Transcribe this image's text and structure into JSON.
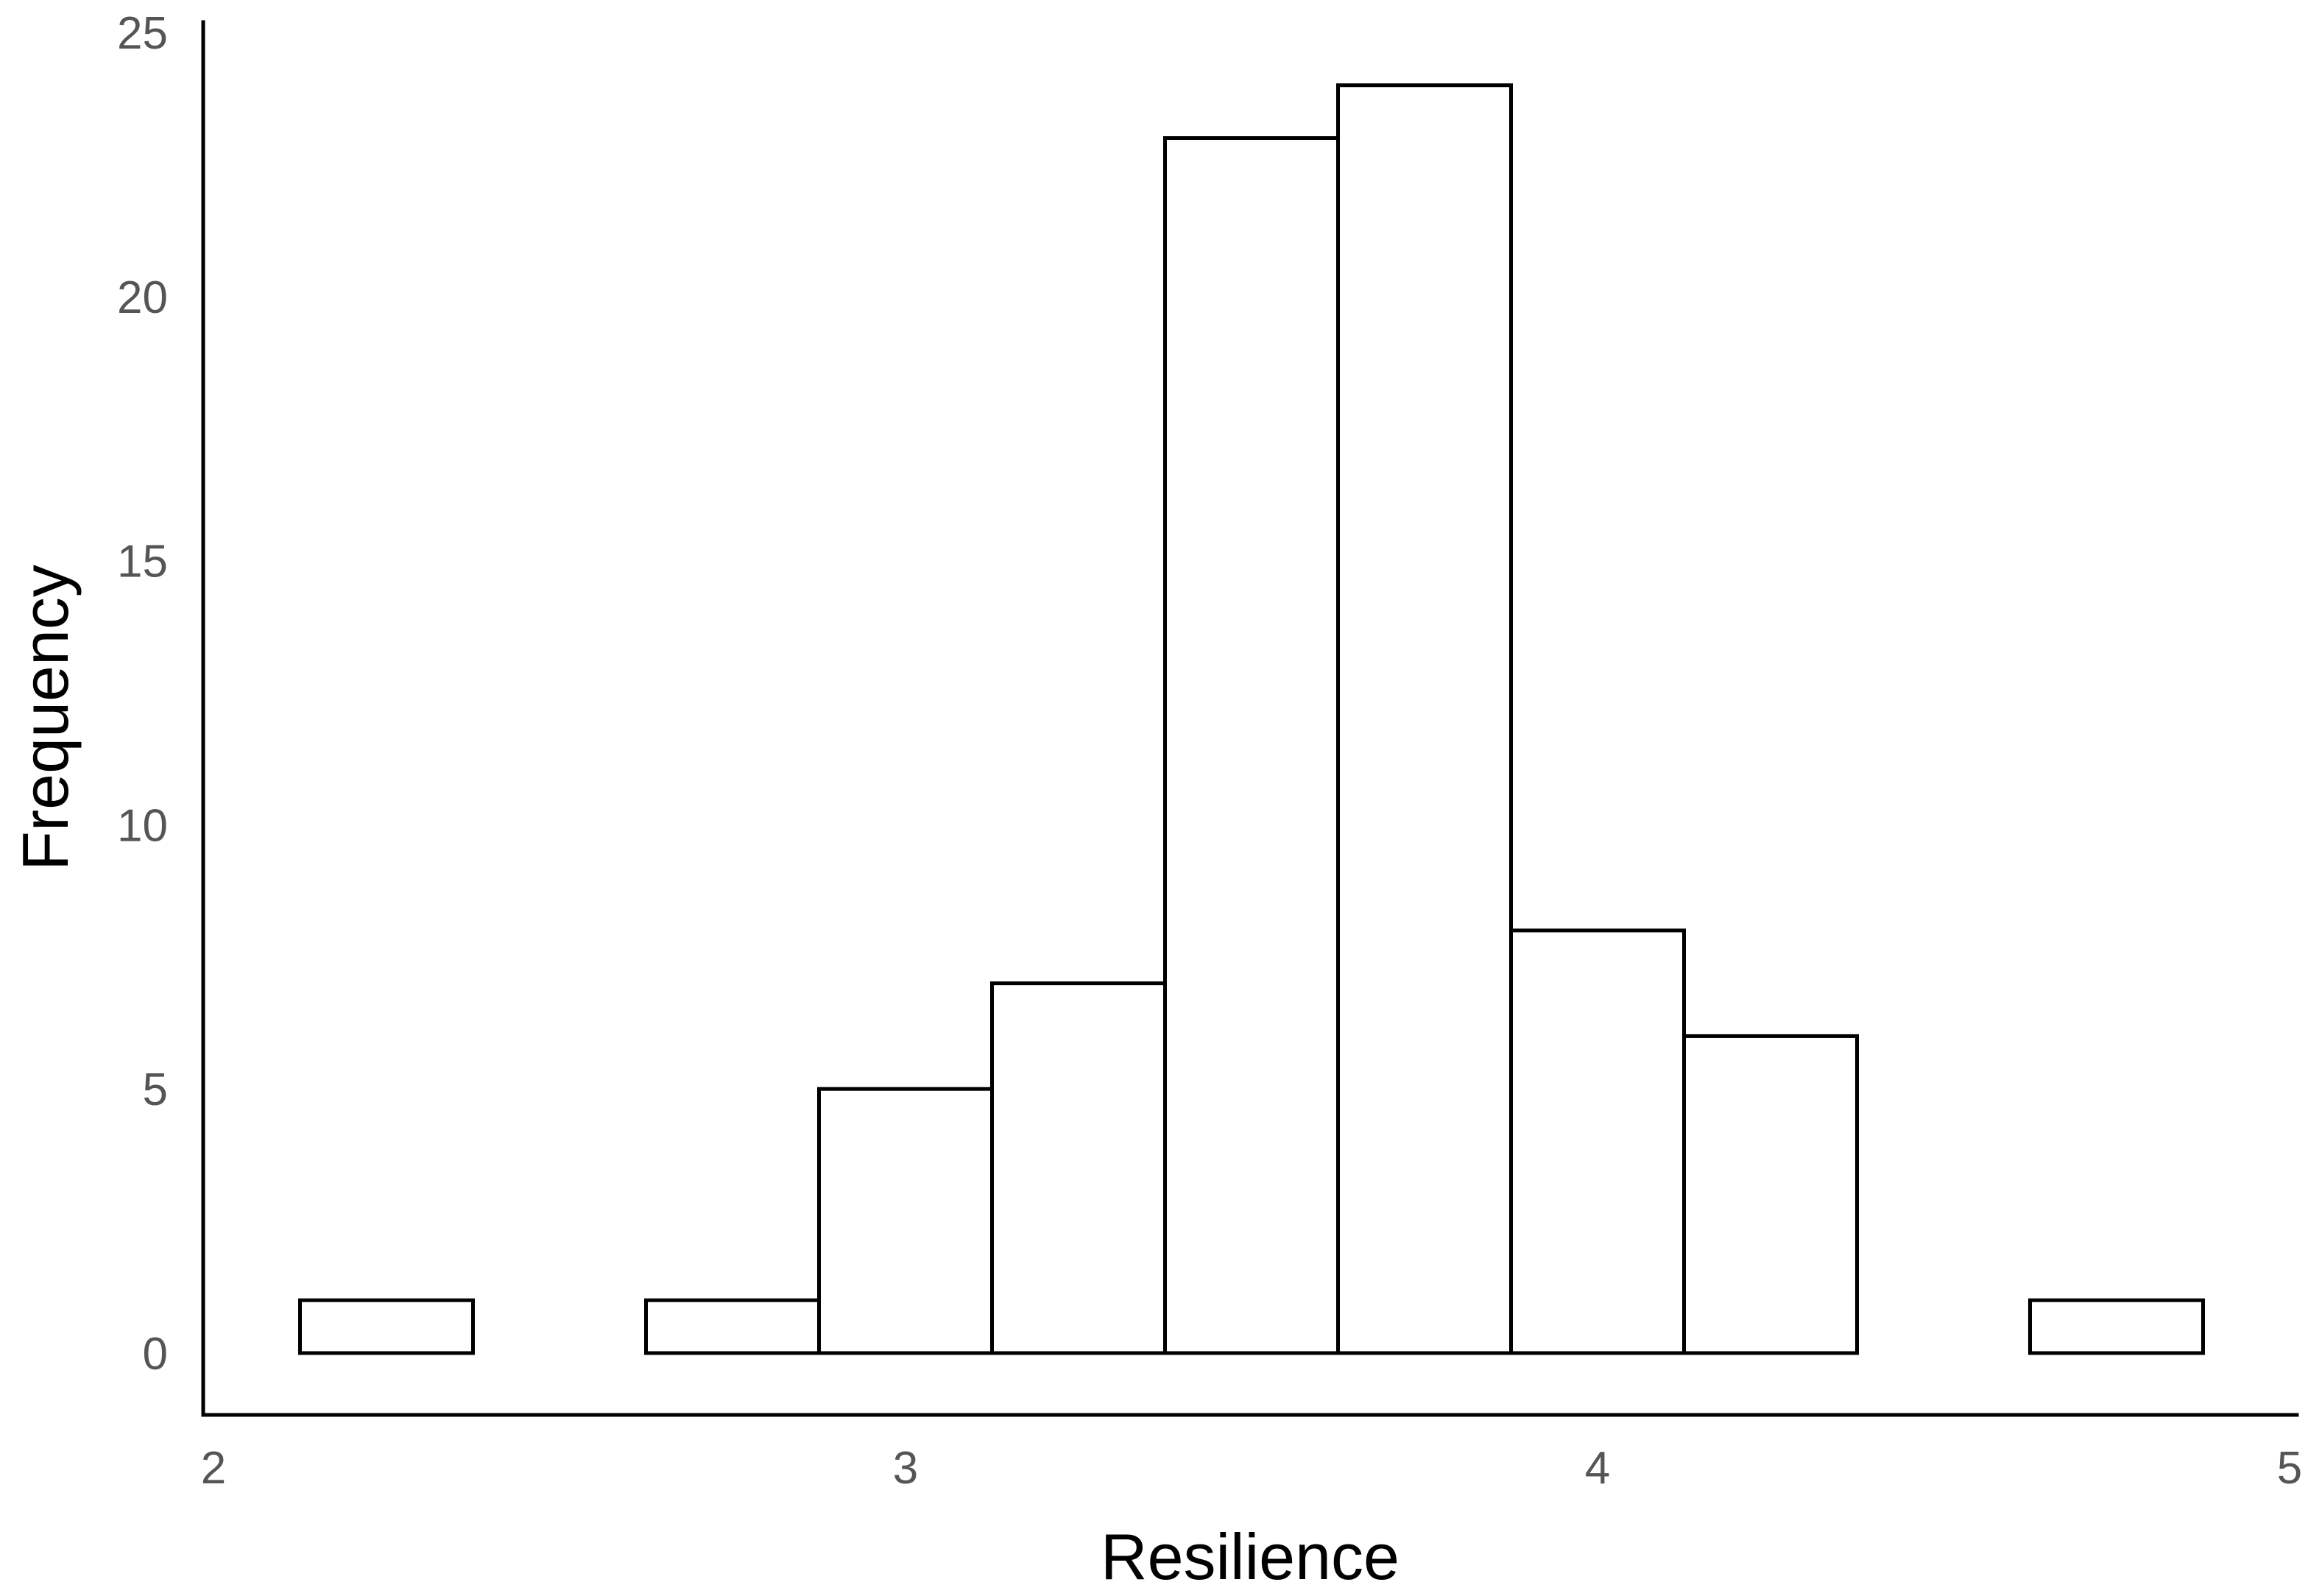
{
  "chart_data": {
    "type": "bar",
    "title": "",
    "xlabel": "Resilience",
    "ylabel": "Frequency",
    "xlim": [
      2,
      5
    ],
    "ylim": [
      0,
      25
    ],
    "x_ticks": [
      "2",
      "3",
      "4",
      "5"
    ],
    "y_ticks": [
      "0",
      "5",
      "10",
      "15",
      "20",
      "25"
    ],
    "bins": [
      {
        "start": 2.125,
        "end": 2.375,
        "value": 1
      },
      {
        "start": 2.375,
        "end": 2.625,
        "value": 0
      },
      {
        "start": 2.625,
        "end": 2.875,
        "value": 1
      },
      {
        "start": 2.875,
        "end": 3.125,
        "value": 5
      },
      {
        "start": 3.125,
        "end": 3.375,
        "value": 7
      },
      {
        "start": 3.375,
        "end": 3.625,
        "value": 23
      },
      {
        "start": 3.625,
        "end": 3.875,
        "value": 24
      },
      {
        "start": 3.875,
        "end": 4.125,
        "value": 8
      },
      {
        "start": 4.125,
        "end": 4.375,
        "value": 6
      },
      {
        "start": 4.375,
        "end": 4.625,
        "value": 0
      },
      {
        "start": 4.625,
        "end": 4.875,
        "value": 1
      }
    ],
    "grid": false,
    "legend": "none",
    "colors": {
      "bar_fill": "#ffffff",
      "bar_stroke": "#000000",
      "tick_text": "#555555"
    }
  }
}
